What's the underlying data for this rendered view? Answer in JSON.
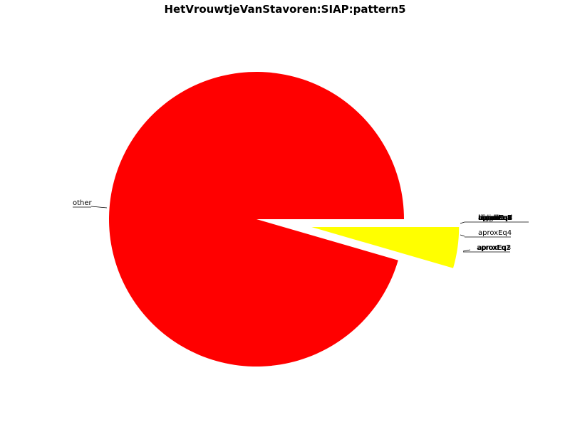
{
  "chart_data": {
    "type": "pie",
    "title": "HetVrouwtjeVanStavoren:SIAP:pattern5",
    "slices": [
      {
        "label": "other",
        "value": 95.5,
        "color": "#ff0000"
      },
      {
        "label": "aproxEq4",
        "value": 4.5,
        "color": "#ffff00",
        "explode": true
      }
    ],
    "tiny_labels": [
      "aproxEq1",
      "aproxEq2",
      "aproxEq3",
      "aproxEq4",
      "aproxEq5",
      "aproxEq6",
      "aproxEq7",
      "aproxEq8",
      "aproxEq9",
      "equal",
      "bigger",
      "smaller",
      "disjoint",
      "unrelated",
      "linked"
    ],
    "label_groups": [
      {
        "texts": [
          "aproxEq1",
          "aproxEq2",
          "aproxEq3",
          "aproxEq5",
          "aproxEq6",
          "aproxEq7",
          "aproxEq8",
          "aproxEq9",
          "equal",
          "bigger",
          "smaller",
          "disjoint",
          "unrelated",
          "linked"
        ]
      },
      {
        "texts": [
          "aproxEq4"
        ]
      },
      {
        "texts": [
          "aproxEq1",
          "aproxEq2",
          "aproxEq3"
        ]
      },
      {
        "texts": [
          "other"
        ]
      }
    ],
    "legend": "none"
  }
}
